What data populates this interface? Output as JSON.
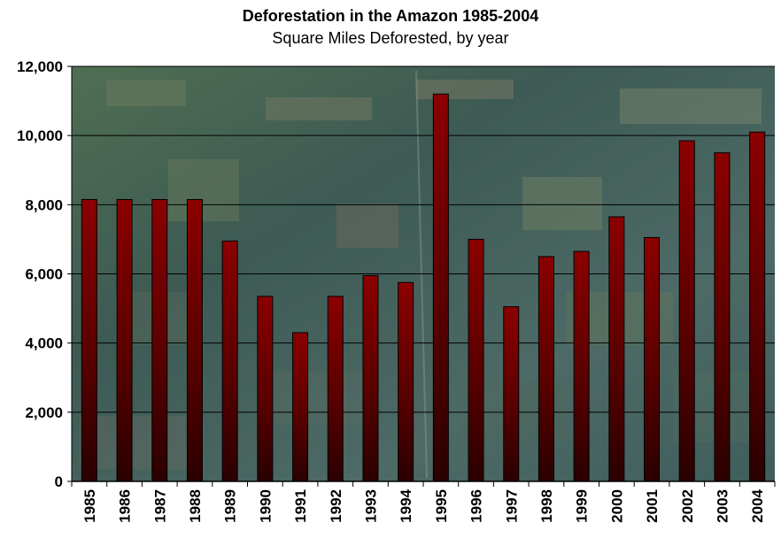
{
  "chart_data": {
    "type": "bar",
    "title": "Deforestation in the Amazon 1985-2004",
    "subtitle": "Square Miles Deforested, by year",
    "xlabel": "",
    "ylabel": "",
    "categories": [
      "1985",
      "1986",
      "1987",
      "1988",
      "1989",
      "1990",
      "1991",
      "1992",
      "1993",
      "1994",
      "1995",
      "1996",
      "1997",
      "1998",
      "1999",
      "2000",
      "2001",
      "2002",
      "2003",
      "2004"
    ],
    "values": [
      8150,
      8150,
      8150,
      8150,
      6950,
      5350,
      4300,
      5350,
      5950,
      5750,
      11200,
      7000,
      5050,
      6500,
      6650,
      7650,
      7050,
      9850,
      9500,
      10100
    ],
    "ylim": [
      0,
      12000
    ],
    "yticks": [
      "0",
      "2,000",
      "4,000",
      "6,000",
      "8,000",
      "10,000",
      "12,000"
    ],
    "grid": true,
    "legend": "none",
    "colors": {
      "bar_top": "#8b0000",
      "bar_bottom": "#2a0000",
      "grid": "#000000"
    }
  }
}
